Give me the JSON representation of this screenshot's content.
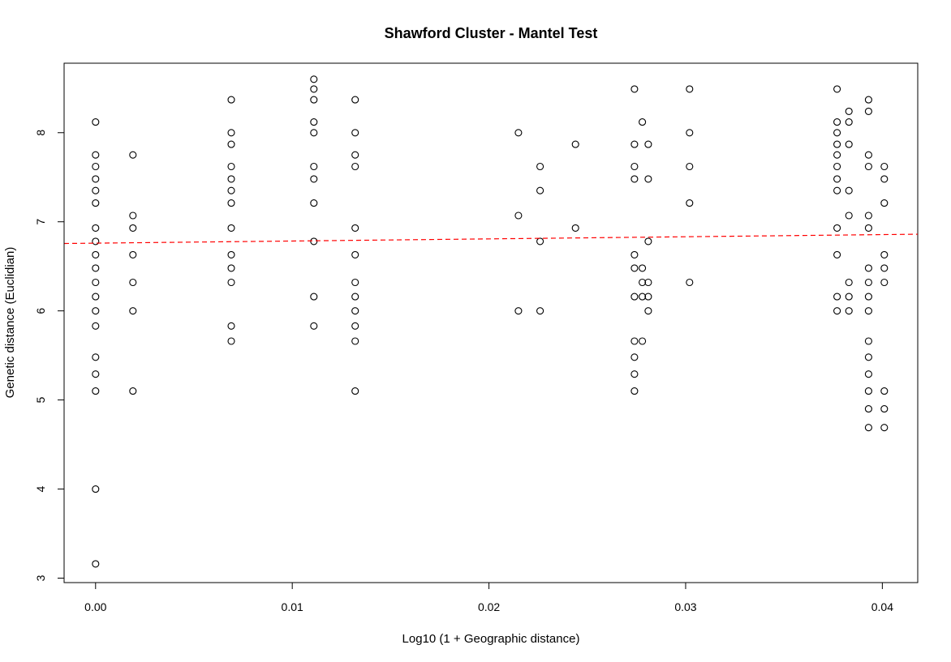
{
  "chart_data": {
    "type": "scatter",
    "title": "Shawford Cluster - Mantel Test",
    "xlabel": "Log10 (1 + Geographic distance)",
    "ylabel": "Genetic distance (Euclidian)",
    "xlim": [
      -0.0016,
      0.0418
    ],
    "ylim": [
      2.95,
      8.78
    ],
    "x_ticks": [
      0.0,
      0.01,
      0.02,
      0.03,
      0.04
    ],
    "x_tick_labels": [
      "0.00",
      "0.01",
      "0.02",
      "0.03",
      "0.04"
    ],
    "y_ticks": [
      3,
      4,
      5,
      6,
      7,
      8
    ],
    "y_tick_labels": [
      "3",
      "4",
      "5",
      "6",
      "7",
      "8"
    ],
    "grid": false,
    "legend": "none",
    "point_color": "#000000",
    "regression_color": "#ff0000",
    "regression_line": {
      "intercept": 6.76,
      "slope": 2.4,
      "style": "dashed"
    },
    "points": [
      {
        "x": 0.0,
        "y": 3.16
      },
      {
        "x": 0.0,
        "y": 4.0
      },
      {
        "x": 0.0,
        "y": 5.1
      },
      {
        "x": 0.0,
        "y": 5.29
      },
      {
        "x": 0.0,
        "y": 5.48
      },
      {
        "x": 0.0,
        "y": 5.83
      },
      {
        "x": 0.0,
        "y": 6.0
      },
      {
        "x": 0.0,
        "y": 6.16
      },
      {
        "x": 0.0,
        "y": 6.32
      },
      {
        "x": 0.0,
        "y": 6.48
      },
      {
        "x": 0.0,
        "y": 6.63
      },
      {
        "x": 0.0,
        "y": 6.78
      },
      {
        "x": 0.0,
        "y": 6.93
      },
      {
        "x": 0.0,
        "y": 7.21
      },
      {
        "x": 0.0,
        "y": 7.35
      },
      {
        "x": 0.0,
        "y": 7.48
      },
      {
        "x": 0.0,
        "y": 7.62
      },
      {
        "x": 0.0,
        "y": 7.75
      },
      {
        "x": 0.0,
        "y": 8.12
      },
      {
        "x": 0.0019,
        "y": 5.1
      },
      {
        "x": 0.0019,
        "y": 6.0
      },
      {
        "x": 0.0019,
        "y": 6.32
      },
      {
        "x": 0.0019,
        "y": 6.63
      },
      {
        "x": 0.0019,
        "y": 6.93
      },
      {
        "x": 0.0019,
        "y": 7.07
      },
      {
        "x": 0.0019,
        "y": 7.75
      },
      {
        "x": 0.0069,
        "y": 5.66
      },
      {
        "x": 0.0069,
        "y": 5.83
      },
      {
        "x": 0.0069,
        "y": 6.32
      },
      {
        "x": 0.0069,
        "y": 6.48
      },
      {
        "x": 0.0069,
        "y": 6.63
      },
      {
        "x": 0.0069,
        "y": 6.93
      },
      {
        "x": 0.0069,
        "y": 7.21
      },
      {
        "x": 0.0069,
        "y": 7.35
      },
      {
        "x": 0.0069,
        "y": 7.48
      },
      {
        "x": 0.0069,
        "y": 7.62
      },
      {
        "x": 0.0069,
        "y": 7.87
      },
      {
        "x": 0.0069,
        "y": 8.0
      },
      {
        "x": 0.0069,
        "y": 8.37
      },
      {
        "x": 0.0111,
        "y": 5.83
      },
      {
        "x": 0.0111,
        "y": 6.16
      },
      {
        "x": 0.0111,
        "y": 6.78
      },
      {
        "x": 0.0111,
        "y": 7.21
      },
      {
        "x": 0.0111,
        "y": 7.48
      },
      {
        "x": 0.0111,
        "y": 7.62
      },
      {
        "x": 0.0111,
        "y": 8.0
      },
      {
        "x": 0.0111,
        "y": 8.12
      },
      {
        "x": 0.0111,
        "y": 8.37
      },
      {
        "x": 0.0111,
        "y": 8.49
      },
      {
        "x": 0.0111,
        "y": 8.6
      },
      {
        "x": 0.0132,
        "y": 5.1
      },
      {
        "x": 0.0132,
        "y": 5.66
      },
      {
        "x": 0.0132,
        "y": 5.83
      },
      {
        "x": 0.0132,
        "y": 6.0
      },
      {
        "x": 0.0132,
        "y": 6.16
      },
      {
        "x": 0.0132,
        "y": 6.32
      },
      {
        "x": 0.0132,
        "y": 6.63
      },
      {
        "x": 0.0132,
        "y": 6.93
      },
      {
        "x": 0.0132,
        "y": 7.62
      },
      {
        "x": 0.0132,
        "y": 7.75
      },
      {
        "x": 0.0132,
        "y": 8.0
      },
      {
        "x": 0.0132,
        "y": 8.37
      },
      {
        "x": 0.0215,
        "y": 6.0
      },
      {
        "x": 0.0215,
        "y": 7.07
      },
      {
        "x": 0.0215,
        "y": 8.0
      },
      {
        "x": 0.0226,
        "y": 6.0
      },
      {
        "x": 0.0226,
        "y": 6.78
      },
      {
        "x": 0.0226,
        "y": 7.35
      },
      {
        "x": 0.0226,
        "y": 7.62
      },
      {
        "x": 0.0244,
        "y": 6.93
      },
      {
        "x": 0.0244,
        "y": 7.87
      },
      {
        "x": 0.0274,
        "y": 5.1
      },
      {
        "x": 0.0274,
        "y": 5.29
      },
      {
        "x": 0.0274,
        "y": 5.48
      },
      {
        "x": 0.0274,
        "y": 5.66
      },
      {
        "x": 0.0274,
        "y": 6.16
      },
      {
        "x": 0.0274,
        "y": 6.48
      },
      {
        "x": 0.0274,
        "y": 6.63
      },
      {
        "x": 0.0274,
        "y": 7.48
      },
      {
        "x": 0.0274,
        "y": 7.62
      },
      {
        "x": 0.0274,
        "y": 7.87
      },
      {
        "x": 0.0274,
        "y": 8.49
      },
      {
        "x": 0.0278,
        "y": 5.66
      },
      {
        "x": 0.0278,
        "y": 6.16
      },
      {
        "x": 0.0278,
        "y": 6.32
      },
      {
        "x": 0.0278,
        "y": 6.48
      },
      {
        "x": 0.0278,
        "y": 8.12
      },
      {
        "x": 0.0281,
        "y": 6.0
      },
      {
        "x": 0.0281,
        "y": 6.16
      },
      {
        "x": 0.0281,
        "y": 6.32
      },
      {
        "x": 0.0281,
        "y": 6.78
      },
      {
        "x": 0.0281,
        "y": 7.48
      },
      {
        "x": 0.0281,
        "y": 7.87
      },
      {
        "x": 0.0302,
        "y": 6.32
      },
      {
        "x": 0.0302,
        "y": 7.21
      },
      {
        "x": 0.0302,
        "y": 7.62
      },
      {
        "x": 0.0302,
        "y": 8.0
      },
      {
        "x": 0.0302,
        "y": 8.49
      },
      {
        "x": 0.0377,
        "y": 6.0
      },
      {
        "x": 0.0377,
        "y": 6.16
      },
      {
        "x": 0.0377,
        "y": 6.63
      },
      {
        "x": 0.0377,
        "y": 6.93
      },
      {
        "x": 0.0377,
        "y": 7.35
      },
      {
        "x": 0.0377,
        "y": 7.48
      },
      {
        "x": 0.0377,
        "y": 7.62
      },
      {
        "x": 0.0377,
        "y": 7.75
      },
      {
        "x": 0.0377,
        "y": 7.87
      },
      {
        "x": 0.0377,
        "y": 8.0
      },
      {
        "x": 0.0377,
        "y": 8.12
      },
      {
        "x": 0.0377,
        "y": 8.49
      },
      {
        "x": 0.0383,
        "y": 6.0
      },
      {
        "x": 0.0383,
        "y": 6.16
      },
      {
        "x": 0.0383,
        "y": 6.32
      },
      {
        "x": 0.0383,
        "y": 7.07
      },
      {
        "x": 0.0383,
        "y": 7.35
      },
      {
        "x": 0.0383,
        "y": 7.87
      },
      {
        "x": 0.0383,
        "y": 8.12
      },
      {
        "x": 0.0383,
        "y": 8.24
      },
      {
        "x": 0.0393,
        "y": 4.69
      },
      {
        "x": 0.0393,
        "y": 4.9
      },
      {
        "x": 0.0393,
        "y": 5.1
      },
      {
        "x": 0.0393,
        "y": 5.29
      },
      {
        "x": 0.0393,
        "y": 5.48
      },
      {
        "x": 0.0393,
        "y": 5.66
      },
      {
        "x": 0.0393,
        "y": 6.0
      },
      {
        "x": 0.0393,
        "y": 6.16
      },
      {
        "x": 0.0393,
        "y": 6.32
      },
      {
        "x": 0.0393,
        "y": 6.48
      },
      {
        "x": 0.0393,
        "y": 6.93
      },
      {
        "x": 0.0393,
        "y": 7.07
      },
      {
        "x": 0.0393,
        "y": 7.62
      },
      {
        "x": 0.0393,
        "y": 7.75
      },
      {
        "x": 0.0393,
        "y": 8.24
      },
      {
        "x": 0.0393,
        "y": 8.37
      },
      {
        "x": 0.0401,
        "y": 4.69
      },
      {
        "x": 0.0401,
        "y": 4.9
      },
      {
        "x": 0.0401,
        "y": 5.1
      },
      {
        "x": 0.0401,
        "y": 6.32
      },
      {
        "x": 0.0401,
        "y": 6.48
      },
      {
        "x": 0.0401,
        "y": 6.63
      },
      {
        "x": 0.0401,
        "y": 7.21
      },
      {
        "x": 0.0401,
        "y": 7.48
      },
      {
        "x": 0.0401,
        "y": 7.62
      }
    ]
  }
}
